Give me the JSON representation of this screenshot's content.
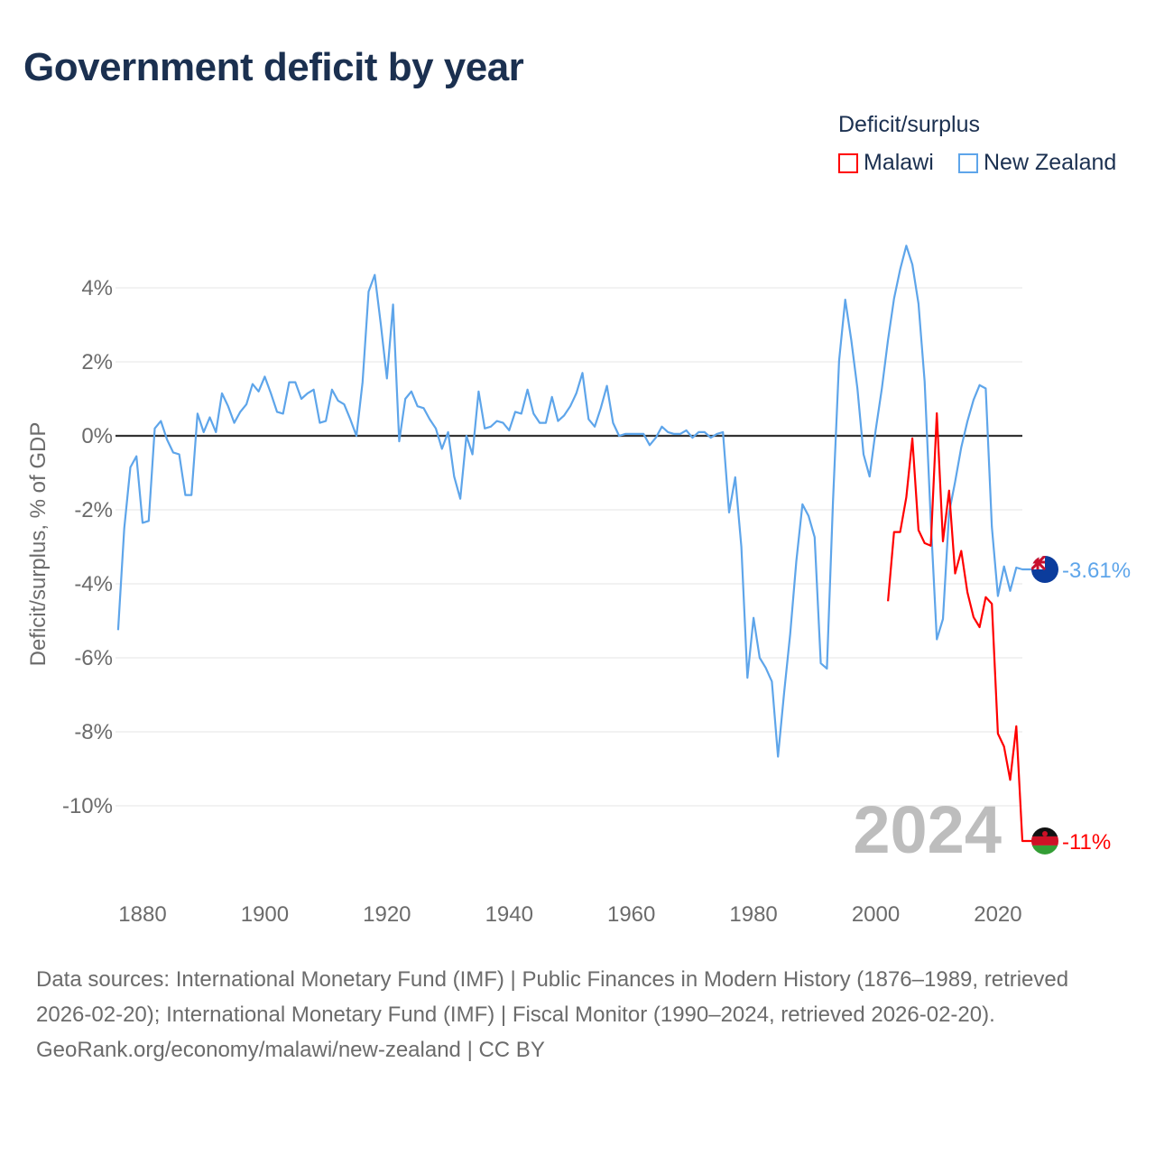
{
  "title": "Government deficit by year",
  "legend": {
    "title": "Deficit/surplus",
    "items": [
      {
        "name": "Malawi",
        "color": "#ff0000"
      },
      {
        "name": "New Zealand",
        "color": "#5ea5ea"
      }
    ]
  },
  "year_label": "2024",
  "footer": {
    "sources": "Data sources: International Monetary Fund (IMF) | Public Finances in Modern History (1876–1989, retrieved 2026-02-20); International Monetary Fund (IMF) | Fiscal Monitor (1990–2024, retrieved 2026-02-20).",
    "credit": "GeoRank.org/economy/malawi/new-zealand | CC BY"
  },
  "chart_data": {
    "type": "line",
    "title": "Government deficit by year",
    "xlabel": "",
    "ylabel": "Deficit/surplus, % of GDP",
    "xlim": [
      1876,
      2024
    ],
    "ylim": [
      -11.5,
      5.5
    ],
    "x_ticks": [
      1880,
      1900,
      1920,
      1940,
      1960,
      1980,
      2000,
      2020
    ],
    "y_ticks": [
      -10,
      -8,
      -6,
      -4,
      -2,
      0,
      2,
      4
    ],
    "y_tick_labels": [
      "-10%",
      "-8%",
      "-6%",
      "-4%",
      "-2%",
      "0%",
      "2%",
      "4%"
    ],
    "legend_placement": "top-right",
    "series": [
      {
        "name": "New Zealand",
        "color": "#5ea5ea",
        "end_label": "-3.61%",
        "start_year": 1876,
        "values": [
          -5.25,
          -2.5,
          -0.85,
          -0.55,
          -2.35,
          -2.3,
          0.2,
          0.4,
          -0.1,
          -0.45,
          -0.5,
          -1.6,
          -1.6,
          0.6,
          0.1,
          0.5,
          0.1,
          1.15,
          0.8,
          0.35,
          0.65,
          0.85,
          1.4,
          1.2,
          1.6,
          1.15,
          0.65,
          0.6,
          1.45,
          1.45,
          1.0,
          1.15,
          1.25,
          0.35,
          0.4,
          1.25,
          0.95,
          0.85,
          0.45,
          0.0,
          1.45,
          3.9,
          4.35,
          3.0,
          1.55,
          3.55,
          -0.15,
          1.0,
          1.2,
          0.8,
          0.75,
          0.45,
          0.2,
          -0.35,
          0.1,
          -1.1,
          -1.7,
          0.0,
          -0.5,
          1.2,
          0.2,
          0.25,
          0.4,
          0.35,
          0.15,
          0.65,
          0.6,
          1.25,
          0.6,
          0.35,
          0.35,
          1.05,
          0.4,
          0.55,
          0.8,
          1.15,
          1.7,
          0.45,
          0.25,
          0.75,
          1.35,
          0.35,
          0.0,
          0.05,
          0.05,
          0.05,
          0.05,
          -0.25,
          -0.05,
          0.25,
          0.1,
          0.05,
          0.05,
          0.15,
          -0.05,
          0.1,
          0.1,
          -0.05,
          0.05,
          0.1,
          -2.07,
          -1.12,
          -3.0,
          -6.54,
          -4.92,
          -6.0,
          -6.27,
          -6.64,
          -8.67,
          -6.94,
          -5.36,
          -3.39,
          -1.85,
          -2.16,
          -2.74,
          -6.15,
          -6.29,
          -1.8,
          2.03,
          3.68,
          2.59,
          1.28,
          -0.5,
          -1.1,
          0.16,
          1.28,
          2.59,
          3.71,
          4.5,
          5.14,
          4.63,
          3.57,
          1.47,
          -2.27,
          -5.5,
          -4.95,
          -2.08,
          -1.24,
          -0.31,
          0.39,
          0.97,
          1.37,
          1.28,
          -2.46,
          -4.33,
          -3.53,
          -4.19,
          -3.56,
          -3.61
        ]
      },
      {
        "name": "Malawi",
        "color": "#ff0000",
        "end_label": "-11%",
        "start_year": 2002,
        "values": [
          -4.47,
          -2.6,
          -2.6,
          -1.66,
          -0.07,
          -2.55,
          -2.9,
          -2.97,
          0.61,
          -2.85,
          -1.48,
          -3.72,
          -3.11,
          -4.23,
          -4.9,
          -5.17,
          -4.36,
          -4.54,
          -8.05,
          -8.4,
          -9.3,
          -7.85,
          -10.95
        ]
      }
    ]
  }
}
